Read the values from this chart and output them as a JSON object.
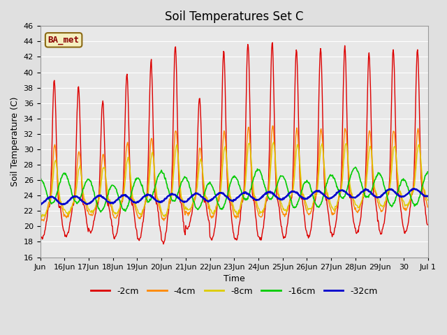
{
  "title": "Soil Temperatures Set C",
  "xlabel": "Time",
  "ylabel": "Soil Temperature (C)",
  "ylim": [
    16,
    46
  ],
  "yticks": [
    16,
    18,
    20,
    22,
    24,
    26,
    28,
    30,
    32,
    34,
    36,
    38,
    40,
    42,
    44,
    46
  ],
  "bg_color": "#e0e0e0",
  "plot_bg_color": "#e8e8e8",
  "legend_labels": [
    "-2cm",
    "-4cm",
    "-8cm",
    "-16cm",
    "-32cm"
  ],
  "line_colors": [
    "#dd0000",
    "#ff8800",
    "#ddcc00",
    "#00cc00",
    "#0000cc"
  ],
  "line_widths": [
    1.0,
    1.0,
    1.0,
    1.2,
    1.8
  ],
  "annotation_text": "BA_met",
  "title_fontsize": 12,
  "axis_label_fontsize": 9,
  "tick_fontsize": 8,
  "day_labels": [
    "Jun",
    "16Jun",
    "17Jun",
    "18Jun",
    "19Jun",
    "20Jun",
    "21Jun",
    "22Jun",
    "23Jun",
    "24Jun",
    "25Jun",
    "26Jun",
    "27Jun",
    "28Jun",
    "29Jun",
    "30",
    "Jul 1"
  ],
  "num_days": 16,
  "seed": 42
}
